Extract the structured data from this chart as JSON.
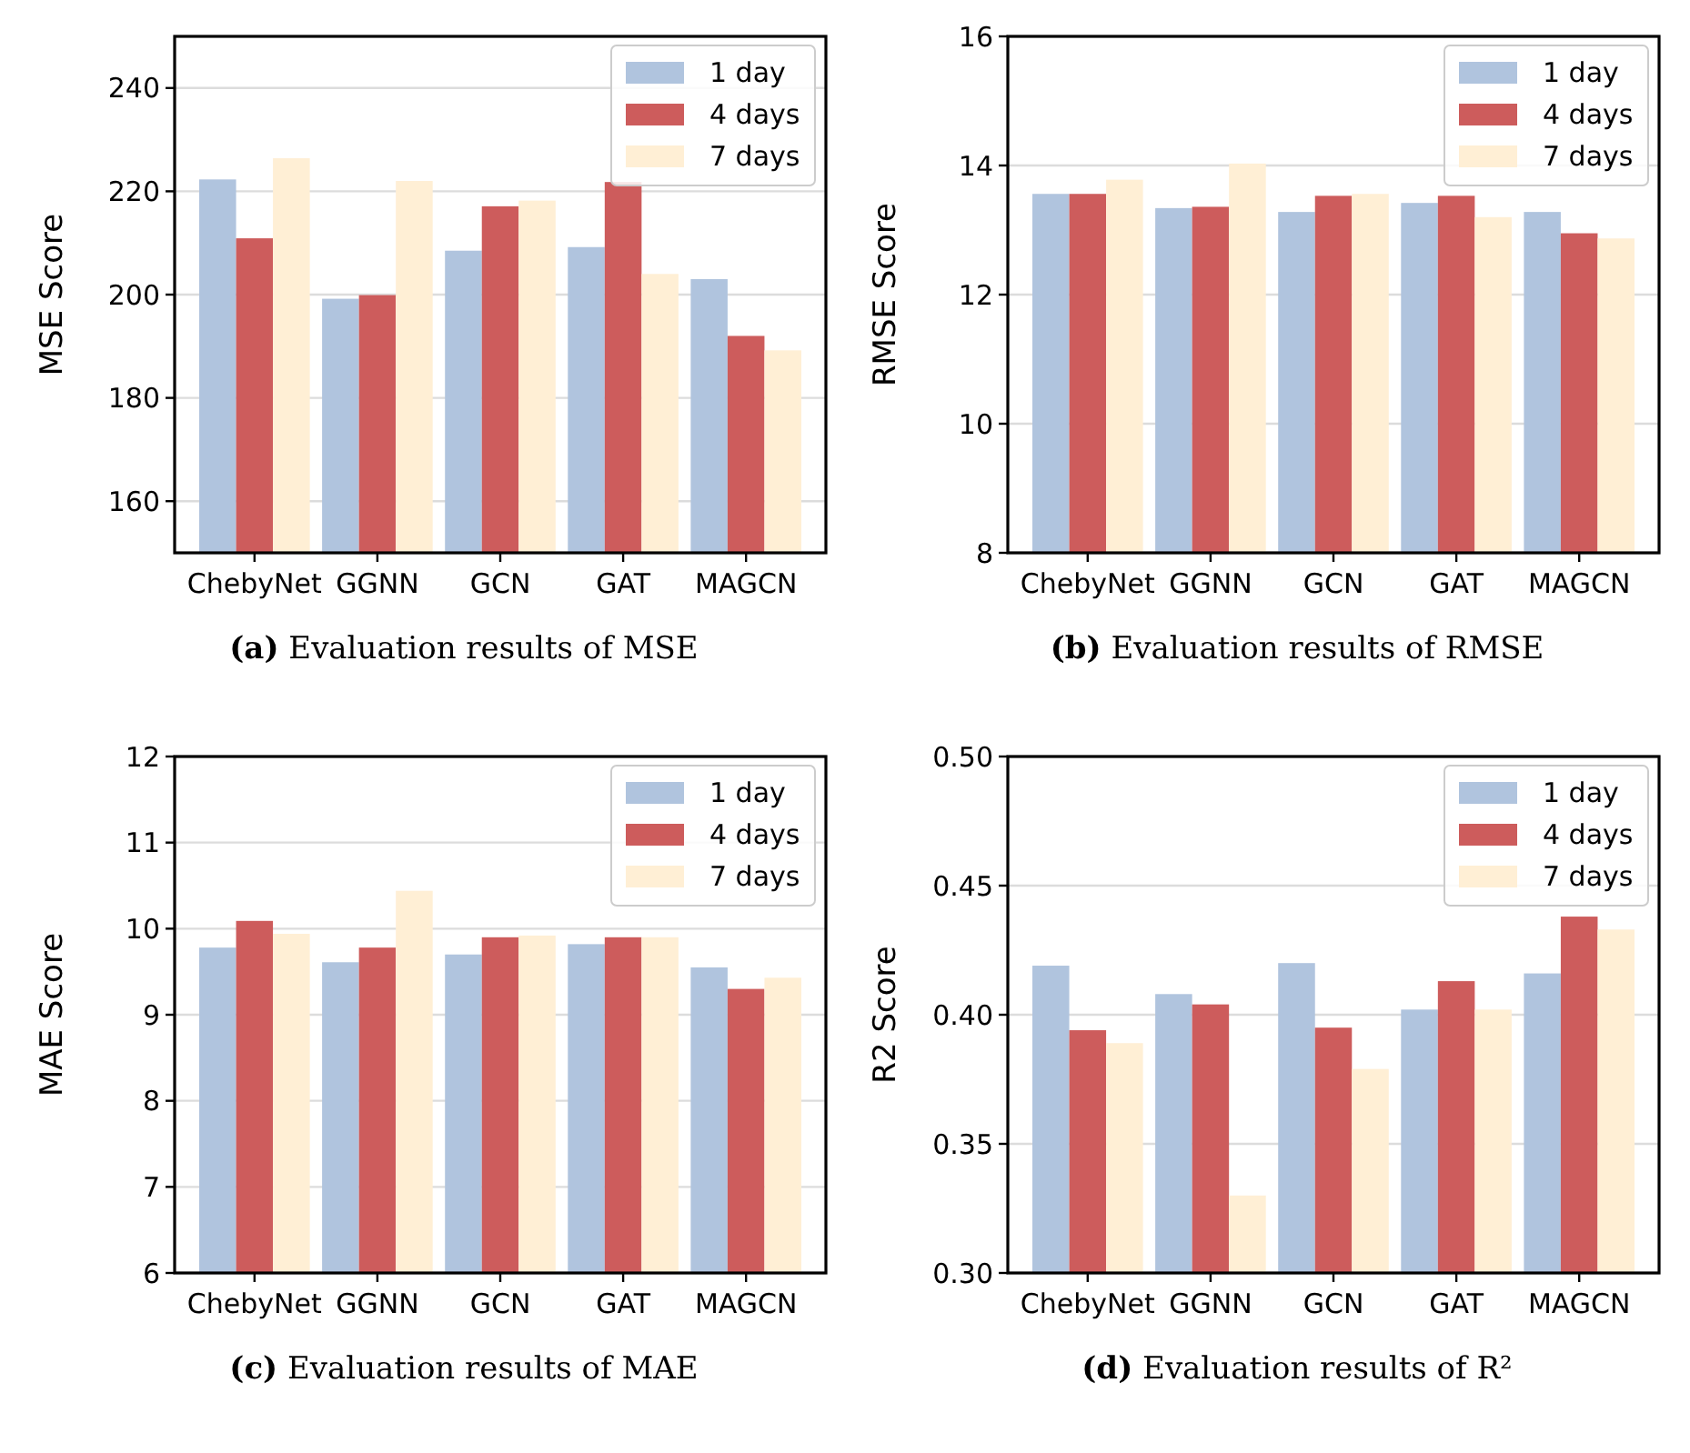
{
  "chart_data": [
    {
      "type": "bar",
      "title": "(a) Evaluation results of MSE",
      "ylabel": "MSE Score",
      "categories": [
        "ChebyNet",
        "GGNN",
        "GCN",
        "GAT",
        "MAGCN"
      ],
      "ylim": [
        150,
        250
      ],
      "yticks": [
        160,
        180,
        200,
        220,
        240
      ],
      "grid": "y",
      "legend": "top right",
      "series": [
        {
          "name": "1 day",
          "color": "#b0c4de",
          "values": [
            222.3,
            199.2,
            208.5,
            209.2,
            203.0
          ]
        },
        {
          "name": "4 days",
          "color": "#cd5c5c",
          "values": [
            210.9,
            199.9,
            217.1,
            221.8,
            192.0
          ]
        },
        {
          "name": "7 days",
          "color": "#ffefd5",
          "values": [
            226.4,
            222.0,
            218.2,
            204.0,
            189.2
          ]
        }
      ]
    },
    {
      "type": "bar",
      "title": "(b) Evaluation results of RMSE",
      "ylabel": "RMSE Score",
      "categories": [
        "ChebyNet",
        "GGNN",
        "GCN",
        "GAT",
        "MAGCN"
      ],
      "ylim": [
        8,
        16
      ],
      "yticks": [
        8,
        10,
        12,
        14,
        16
      ],
      "grid": "y",
      "legend": "top right",
      "series": [
        {
          "name": "1 day",
          "color": "#b0c4de",
          "values": [
            13.56,
            13.34,
            13.28,
            13.42,
            13.28
          ]
        },
        {
          "name": "4 days",
          "color": "#cd5c5c",
          "values": [
            13.56,
            13.36,
            13.53,
            13.53,
            12.95
          ]
        },
        {
          "name": "7 days",
          "color": "#ffefd5",
          "values": [
            13.78,
            14.03,
            13.56,
            13.2,
            12.87
          ]
        }
      ]
    },
    {
      "type": "bar",
      "title": "(c) Evaluation results of MAE",
      "ylabel": "MAE Score",
      "categories": [
        "ChebyNet",
        "GGNN",
        "GCN",
        "GAT",
        "MAGCN"
      ],
      "ylim": [
        6,
        12
      ],
      "yticks": [
        6,
        7,
        8,
        9,
        10,
        11,
        12
      ],
      "grid": "y",
      "legend": "top right",
      "series": [
        {
          "name": "1 day",
          "color": "#b0c4de",
          "values": [
            9.78,
            9.61,
            9.7,
            9.82,
            9.55
          ]
        },
        {
          "name": "4 days",
          "color": "#cd5c5c",
          "values": [
            10.09,
            9.78,
            9.9,
            9.9,
            9.3
          ]
        },
        {
          "name": "7 days",
          "color": "#ffefd5",
          "values": [
            9.94,
            10.44,
            9.92,
            9.9,
            9.43
          ]
        }
      ]
    },
    {
      "type": "bar",
      "title": "(d) Evaluation results of R²",
      "ylabel": "R2 Score",
      "categories": [
        "ChebyNet",
        "GGNN",
        "GCN",
        "GAT",
        "MAGCN"
      ],
      "ylim": [
        0.3,
        0.5
      ],
      "yticks": [
        {
          "value": 0.3,
          "label": "0.30"
        },
        {
          "value": 0.35,
          "label": "0.35"
        },
        {
          "value": 0.4,
          "label": "0.40"
        },
        {
          "value": 0.45,
          "label": "0.45"
        },
        {
          "value": 0.5,
          "label": "0.50"
        }
      ],
      "grid": "y",
      "legend": "top right",
      "series": [
        {
          "name": "1 day",
          "color": "#b0c4de",
          "values": [
            0.419,
            0.408,
            0.42,
            0.402,
            0.416
          ]
        },
        {
          "name": "4 days",
          "color": "#cd5c5c",
          "values": [
            0.394,
            0.404,
            0.395,
            0.413,
            0.438
          ]
        },
        {
          "name": "7 days",
          "color": "#ffefd5",
          "values": [
            0.389,
            0.33,
            0.379,
            0.402,
            0.433
          ]
        }
      ]
    }
  ]
}
